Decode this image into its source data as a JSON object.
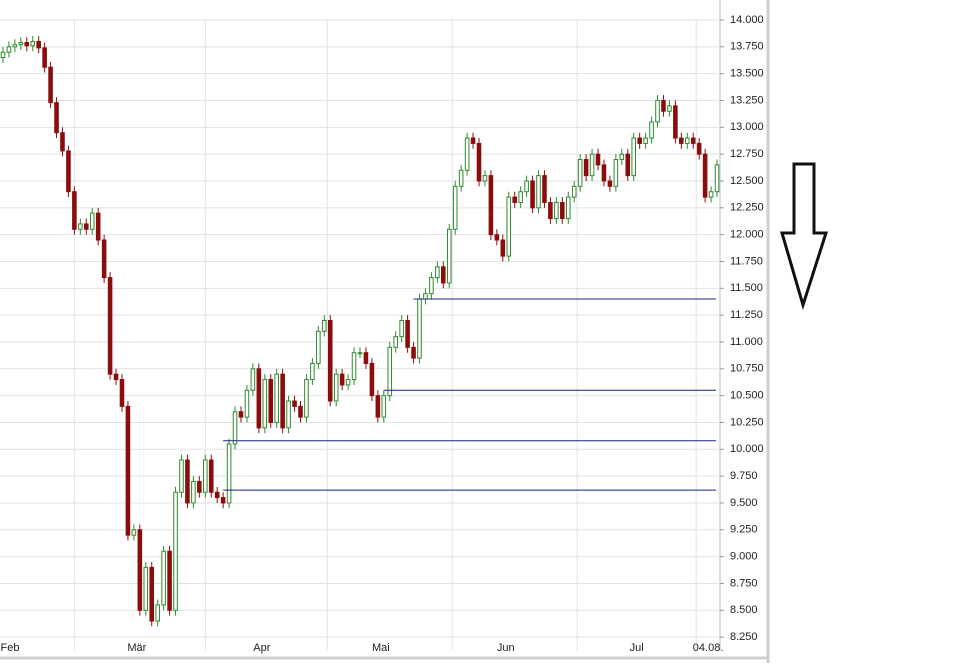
{
  "chart_data": {
    "type": "candlestick",
    "xlim": [
      -0.5,
      120.5
    ],
    "ylim": [
      8130,
      14000
    ],
    "xticks": [
      {
        "value": 1,
        "label": "Feb"
      },
      {
        "value": 22.5,
        "label": "Mär"
      },
      {
        "value": 43.5,
        "label": "Apr"
      },
      {
        "value": 63.5,
        "label": "Mai"
      },
      {
        "value": 84.5,
        "label": "Jun"
      },
      {
        "value": 106.5,
        "label": "Jul"
      },
      {
        "value": 118.5,
        "label": "04.08."
      }
    ],
    "xgrid": [
      12,
      34,
      54.5,
      75.5,
      96.5,
      116.5
    ],
    "yticks": [
      {
        "value": 8250,
        "label": "8.250"
      },
      {
        "value": 8500,
        "label": "8.500"
      },
      {
        "value": 8750,
        "label": "8.750"
      },
      {
        "value": 9000,
        "label": "9.000"
      },
      {
        "value": 9250,
        "label": "9.250"
      },
      {
        "value": 9500,
        "label": "9.500"
      },
      {
        "value": 9750,
        "label": "9.750"
      },
      {
        "value": 10000,
        "label": "10.000"
      },
      {
        "value": 10250,
        "label": "10.250"
      },
      {
        "value": 10500,
        "label": "10.500"
      },
      {
        "value": 10750,
        "label": "10.750"
      },
      {
        "value": 11000,
        "label": "11.000"
      },
      {
        "value": 11250,
        "label": "11.250"
      },
      {
        "value": 11500,
        "label": "11.500"
      },
      {
        "value": 11750,
        "label": "11.750"
      },
      {
        "value": 12000,
        "label": "12.000"
      },
      {
        "value": 12250,
        "label": "12.250"
      },
      {
        "value": 12500,
        "label": "12.500"
      },
      {
        "value": 12750,
        "label": "12.750"
      },
      {
        "value": 13000,
        "label": "13.000"
      },
      {
        "value": 13250,
        "label": "13.250"
      },
      {
        "value": 13500,
        "label": "13.500"
      },
      {
        "value": 13750,
        "label": "13.750"
      },
      {
        "value": 14000,
        "label": "14.000"
      }
    ],
    "grid": true,
    "up_color": "#2e8b2e",
    "down_color": "#8b0c0c",
    "line_color": "#1a237e",
    "open": [
      13650,
      13700,
      13750,
      13770,
      13790,
      13760,
      13800,
      13740,
      13560,
      13230,
      12950,
      12780,
      12400,
      12050,
      12100,
      12050,
      12200,
      11950,
      11600,
      10700,
      10650,
      10400,
      9200,
      9250,
      8500,
      8900,
      8400,
      8550,
      9050,
      8500,
      9600,
      9900,
      9500,
      9700,
      9600,
      9900,
      9600,
      9550,
      9500,
      10050,
      10350,
      10300,
      10550,
      10750,
      10200,
      10650,
      10250,
      10700,
      10200,
      10450,
      10400,
      10300,
      10650,
      10800,
      11100,
      11200,
      10450,
      10700,
      10600,
      10650,
      10900,
      10900,
      10800,
      10500,
      10300,
      10500,
      10950,
      11050,
      11200,
      10950,
      10850,
      11400,
      11450,
      11600,
      11700,
      11550,
      12050,
      12450,
      12600,
      12900,
      12850,
      12500,
      12550,
      12000,
      11950,
      11800,
      12350,
      12300,
      12400,
      12500,
      12250,
      12550,
      12300,
      12150,
      12300,
      12150,
      12350,
      12450,
      12700,
      12550,
      12750,
      12650,
      12500,
      12450,
      12700,
      12750,
      12550,
      12900,
      12850,
      12900,
      13050,
      13250,
      13150,
      13200,
      12900,
      12850,
      12900,
      12850,
      12750,
      12350,
      12400
    ],
    "high": [
      13750,
      13800,
      13820,
      13840,
      13840,
      13850,
      13850,
      13790,
      13610,
      13280,
      13000,
      12830,
      12450,
      12150,
      12150,
      12250,
      12250,
      12000,
      11650,
      10750,
      10700,
      10450,
      9300,
      9300,
      8950,
      8950,
      8600,
      9100,
      9100,
      9650,
      9950,
      9950,
      9750,
      9750,
      9950,
      9950,
      9650,
      9600,
      10100,
      10400,
      10400,
      10600,
      10800,
      10800,
      10700,
      10700,
      10750,
      10750,
      10500,
      10500,
      10450,
      10700,
      10850,
      11150,
      11250,
      11250,
      10750,
      10750,
      10700,
      10950,
      10950,
      10950,
      10850,
      10550,
      10550,
      11000,
      11100,
      11250,
      11250,
      11000,
      11450,
      11500,
      11650,
      11750,
      11750,
      12100,
      12500,
      12650,
      12950,
      12950,
      12900,
      12600,
      12600,
      12050,
      12000,
      12400,
      12400,
      12450,
      12550,
      12550,
      12600,
      12600,
      12350,
      12350,
      12350,
      12400,
      12500,
      12750,
      12750,
      12800,
      12800,
      12700,
      12550,
      12750,
      12800,
      12800,
      12950,
      12950,
      12950,
      13100,
      13300,
      13300,
      13250,
      13250,
      12950,
      12950,
      12950,
      12900,
      12800,
      12450,
      12700
    ],
    "low": [
      13600,
      13650,
      13700,
      13720,
      13710,
      13710,
      13690,
      13510,
      13180,
      12900,
      12730,
      12350,
      12000,
      12000,
      12000,
      12000,
      11900,
      11550,
      10650,
      10600,
      10350,
      9150,
      9150,
      8450,
      8450,
      8350,
      8350,
      8500,
      8450,
      8450,
      9550,
      9450,
      9450,
      9550,
      9550,
      9550,
      9500,
      9450,
      9450,
      10000,
      10250,
      10250,
      10500,
      10150,
      10150,
      10200,
      10200,
      10150,
      10150,
      10350,
      10250,
      10250,
      10600,
      10750,
      11050,
      10400,
      10400,
      10550,
      10550,
      10600,
      10850,
      10750,
      10450,
      10250,
      10250,
      10450,
      10900,
      11000,
      10900,
      10800,
      10800,
      11350,
      11400,
      11550,
      11500,
      11500,
      12000,
      12400,
      12550,
      12800,
      12450,
      12450,
      11950,
      11900,
      11750,
      11750,
      12250,
      12250,
      12350,
      12200,
      12200,
      12250,
      12100,
      12100,
      12100,
      12100,
      12300,
      12400,
      12500,
      12500,
      12600,
      12450,
      12400,
      12400,
      12650,
      12500,
      12500,
      12800,
      12800,
      12850,
      13000,
      13100,
      13100,
      12850,
      12800,
      12800,
      12800,
      12700,
      12300,
      12300,
      12350
    ],
    "close": [
      13700,
      13750,
      13770,
      13790,
      13760,
      13800,
      13740,
      13560,
      13230,
      12950,
      12780,
      12400,
      12050,
      12100,
      12050,
      12200,
      11950,
      11600,
      10700,
      10650,
      10400,
      9200,
      9250,
      8500,
      8900,
      8400,
      8550,
      9050,
      8500,
      9600,
      9900,
      9500,
      9700,
      9600,
      9900,
      9600,
      9550,
      9500,
      10050,
      10350,
      10300,
      10550,
      10750,
      10200,
      10650,
      10250,
      10700,
      10200,
      10450,
      10400,
      10300,
      10650,
      10800,
      11100,
      11200,
      10450,
      10700,
      10600,
      10650,
      10900,
      10900,
      10800,
      10500,
      10300,
      10500,
      10950,
      11050,
      11200,
      10950,
      10850,
      11400,
      11450,
      11600,
      11700,
      11550,
      12050,
      12450,
      12600,
      12900,
      12850,
      12500,
      12550,
      12000,
      11950,
      11800,
      12350,
      12300,
      12400,
      12500,
      12250,
      12550,
      12300,
      12150,
      12300,
      12150,
      12350,
      12450,
      12700,
      12550,
      12750,
      12650,
      12500,
      12450,
      12700,
      12750,
      12550,
      12900,
      12850,
      12900,
      13050,
      13250,
      13150,
      13200,
      12900,
      12850,
      12900,
      12850,
      12750,
      12350,
      12400,
      12650
    ],
    "hlines": [
      {
        "value": 11400,
        "start": 69
      },
      {
        "value": 10550,
        "start": 64
      },
      {
        "value": 10080,
        "start": 37
      },
      {
        "value": 9620,
        "start": 37
      }
    ]
  }
}
